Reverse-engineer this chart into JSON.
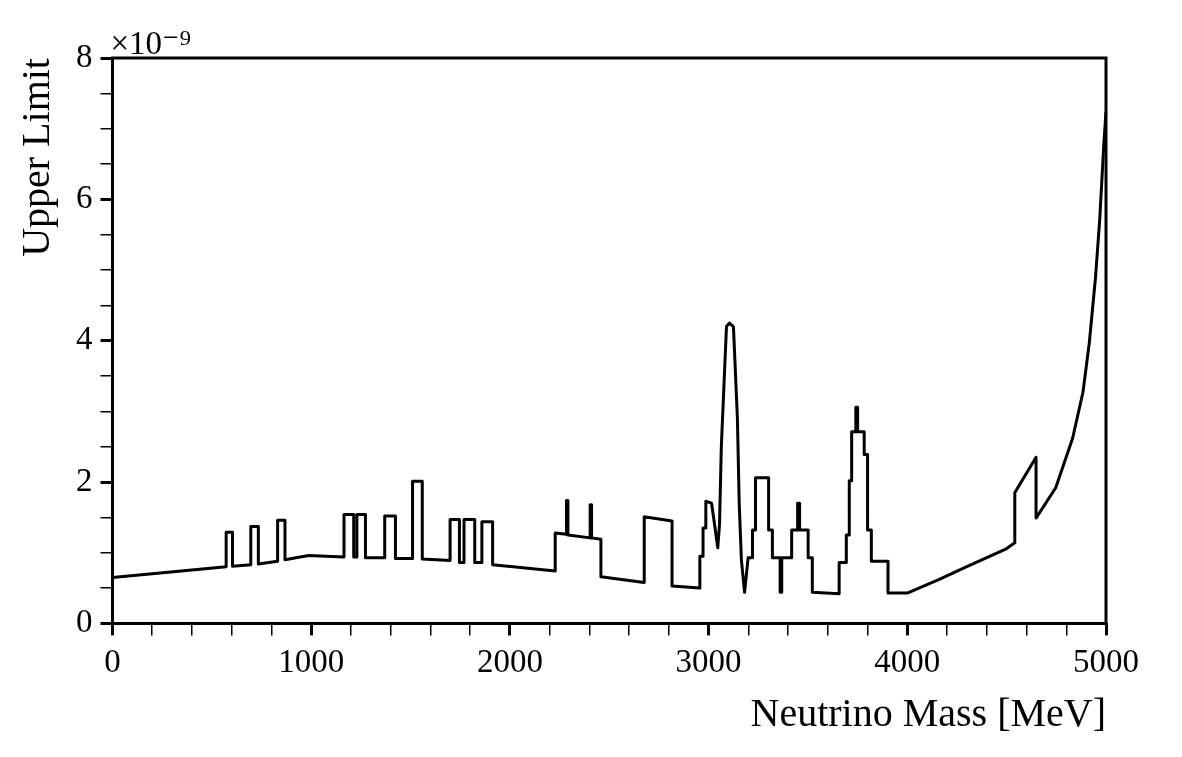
{
  "chart_data": {
    "type": "line",
    "xlabel": "Neutrino Mass [MeV]",
    "ylabel": "Upper Limit",
    "annotations": [
      "×10⁻⁹"
    ],
    "color": "#000000",
    "xlim": [
      0,
      5000
    ],
    "ylim": [
      0,
      8
    ],
    "xticks": [
      0,
      {
        "value": 200,
        "label": null
      },
      {
        "value": 400,
        "label": null
      },
      {
        "value": 600,
        "label": null
      },
      {
        "value": 800,
        "label": null
      },
      1000,
      {
        "value": 1200,
        "label": null
      },
      {
        "value": 1400,
        "label": null
      },
      {
        "value": 1600,
        "label": null
      },
      {
        "value": 1800,
        "label": null
      },
      2000,
      {
        "value": 2200,
        "label": null
      },
      {
        "value": 2400,
        "label": null
      },
      {
        "value": 2600,
        "label": null
      },
      {
        "value": 2800,
        "label": null
      },
      3000,
      {
        "value": 3200,
        "label": null
      },
      {
        "value": 3400,
        "label": null
      },
      {
        "value": 3600,
        "label": null
      },
      {
        "value": 3800,
        "label": null
      },
      4000,
      {
        "value": 4200,
        "label": null
      },
      {
        "value": 4400,
        "label": null
      },
      {
        "value": 4600,
        "label": null
      },
      {
        "value": 4800,
        "label": null
      },
      5000
    ],
    "yticks": [
      0,
      {
        "value": 0.5,
        "label": null
      },
      {
        "value": 1,
        "label": null
      },
      {
        "value": 1.5,
        "label": null
      },
      2,
      {
        "value": 2.5,
        "label": null
      },
      {
        "value": 3,
        "label": null
      },
      {
        "value": 3.5,
        "label": null
      },
      4,
      {
        "value": 4.5,
        "label": null
      },
      {
        "value": 5,
        "label": null
      },
      {
        "value": 5.5,
        "label": null
      },
      6,
      {
        "value": 6.5,
        "label": null
      },
      {
        "value": 7,
        "label": null
      },
      {
        "value": 7.5,
        "label": null
      },
      8
    ],
    "x": [
      0,
      572,
      572,
      604,
      604,
      696,
      696,
      734,
      734,
      831,
      831,
      868,
      868,
      987,
      1165,
      1165,
      1214,
      1214,
      1230,
      1230,
      1273,
      1273,
      1370,
      1370,
      1424,
      1424,
      1510,
      1510,
      1559,
      1559,
      1699,
      1699,
      1746,
      1746,
      1769,
      1769,
      1823,
      1823,
      1859,
      1859,
      1913,
      1913,
      2228,
      2228,
      2285,
      2285,
      2292,
      2292,
      2404,
      2404,
      2411,
      2411,
      2458,
      2458,
      2676,
      2676,
      2816,
      2816,
      2956,
      2956,
      2972,
      2972,
      2986,
      2986,
      3015,
      3030,
      3046,
      3055,
      3064,
      3090,
      3105,
      3125,
      3145,
      3154,
      3165,
      3181,
      3199,
      3221,
      3221,
      3236,
      3236,
      3302,
      3302,
      3321,
      3321,
      3360,
      3360,
      3368,
      3368,
      3418,
      3418,
      3448,
      3448,
      3458,
      3458,
      3501,
      3501,
      3522,
      3522,
      3657,
      3657,
      3693,
      3693,
      3708,
      3708,
      3720,
      3720,
      3741,
      3741,
      3750,
      3750,
      3783,
      3783,
      3800,
      3800,
      3819,
      3819,
      3903,
      3903,
      4000,
      4158,
      4305,
      4495,
      4541,
      4541,
      4648,
      4648,
      4747,
      4832,
      4884,
      4916,
      4947,
      4968,
      4989,
      5000
    ],
    "values": [
      0.65,
      0.8,
      1.29,
      1.29,
      0.81,
      0.83,
      1.37,
      1.37,
      0.84,
      0.88,
      1.46,
      1.46,
      0.9,
      0.96,
      0.94,
      1.54,
      1.54,
      0.94,
      0.94,
      1.54,
      1.54,
      0.93,
      0.93,
      1.52,
      1.52,
      0.92,
      0.92,
      2.01,
      2.01,
      0.91,
      0.89,
      1.47,
      1.47,
      0.86,
      0.86,
      1.47,
      1.47,
      0.86,
      0.86,
      1.44,
      1.44,
      0.83,
      0.74,
      1.28,
      1.26,
      1.74,
      1.74,
      1.25,
      1.21,
      1.68,
      1.68,
      1.21,
      1.19,
      0.66,
      0.58,
      1.51,
      1.45,
      0.53,
      0.5,
      0.95,
      0.95,
      1.35,
      1.35,
      1.73,
      1.7,
      1.4,
      1.07,
      1.4,
      2.5,
      4.2,
      4.25,
      4.2,
      2.9,
      1.7,
      0.9,
      0.44,
      0.93,
      0.93,
      1.32,
      1.32,
      2.06,
      2.06,
      1.32,
      1.32,
      0.93,
      0.93,
      0.44,
      0.44,
      0.93,
      0.93,
      1.32,
      1.32,
      1.7,
      1.7,
      1.32,
      1.32,
      0.93,
      0.93,
      0.44,
      0.42,
      0.86,
      0.86,
      1.25,
      1.25,
      2.02,
      2.02,
      2.71,
      2.71,
      3.06,
      3.06,
      2.71,
      2.71,
      2.39,
      2.39,
      1.32,
      1.32,
      0.88,
      0.88,
      0.43,
      0.43,
      0.62,
      0.81,
      1.05,
      1.14,
      1.85,
      2.35,
      1.49,
      1.92,
      2.62,
      3.27,
      3.97,
      4.89,
      5.7,
      6.78,
      7.24
    ]
  }
}
